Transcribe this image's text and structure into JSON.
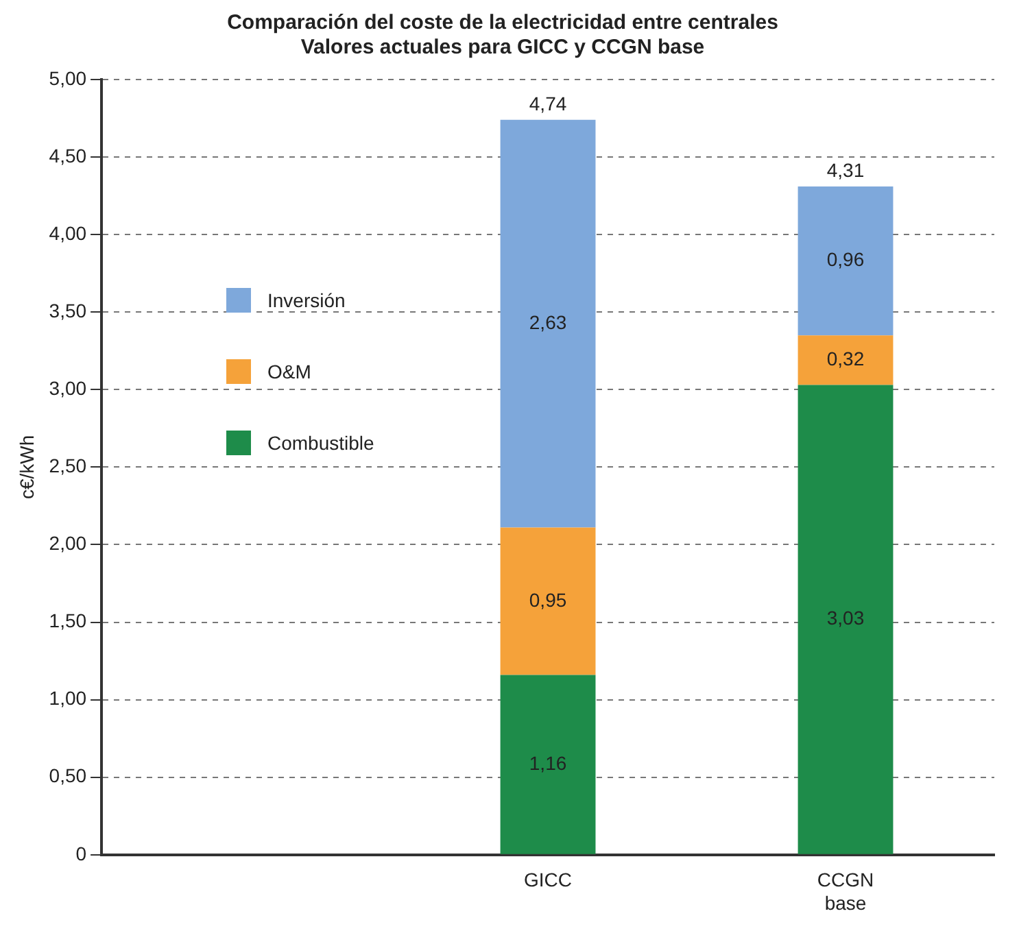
{
  "chart_data": {
    "type": "bar",
    "title": "Comparación del coste de la electricidad entre centrales",
    "subtitle": "Valores actuales para GICC y CCGN base",
    "ylabel": "c€/kWh",
    "categories": [
      null,
      "GICC",
      "CCGN base"
    ],
    "stacked": true,
    "series": [
      {
        "name": "Combustible",
        "color": "#1e8c4a",
        "values": [
          null,
          1.16,
          3.03
        ],
        "value_labels": [
          null,
          "1,16",
          "3,03"
        ]
      },
      {
        "name": "O&M",
        "color": "#f5a23a",
        "values": [
          null,
          0.95,
          0.32
        ],
        "value_labels": [
          null,
          "0,95",
          "0,32"
        ]
      },
      {
        "name": "Inversión",
        "color": "#7ea8db",
        "values": [
          null,
          2.63,
          0.96
        ],
        "value_labels": [
          null,
          "2,63",
          "0,96"
        ]
      }
    ],
    "totals": [
      null,
      "4,74",
      "4,31"
    ],
    "ylim": [
      0,
      5
    ],
    "yticks": [
      0,
      {
        "value": 0.5,
        "label": "0,50"
      },
      {
        "value": 1,
        "label": "1,00"
      },
      {
        "value": 1.5,
        "label": "1,50"
      },
      {
        "value": 2,
        "label": "2,00"
      },
      {
        "value": 2.5,
        "label": "2,50"
      },
      {
        "value": 3,
        "label": "3,00"
      },
      {
        "value": 3.5,
        "label": "3,50"
      },
      {
        "value": 4,
        "label": "4,00"
      },
      {
        "value": 4.5,
        "label": "4,50"
      },
      {
        "value": 5,
        "label": "5,00"
      }
    ],
    "grid": "y",
    "legend": "top left"
  }
}
